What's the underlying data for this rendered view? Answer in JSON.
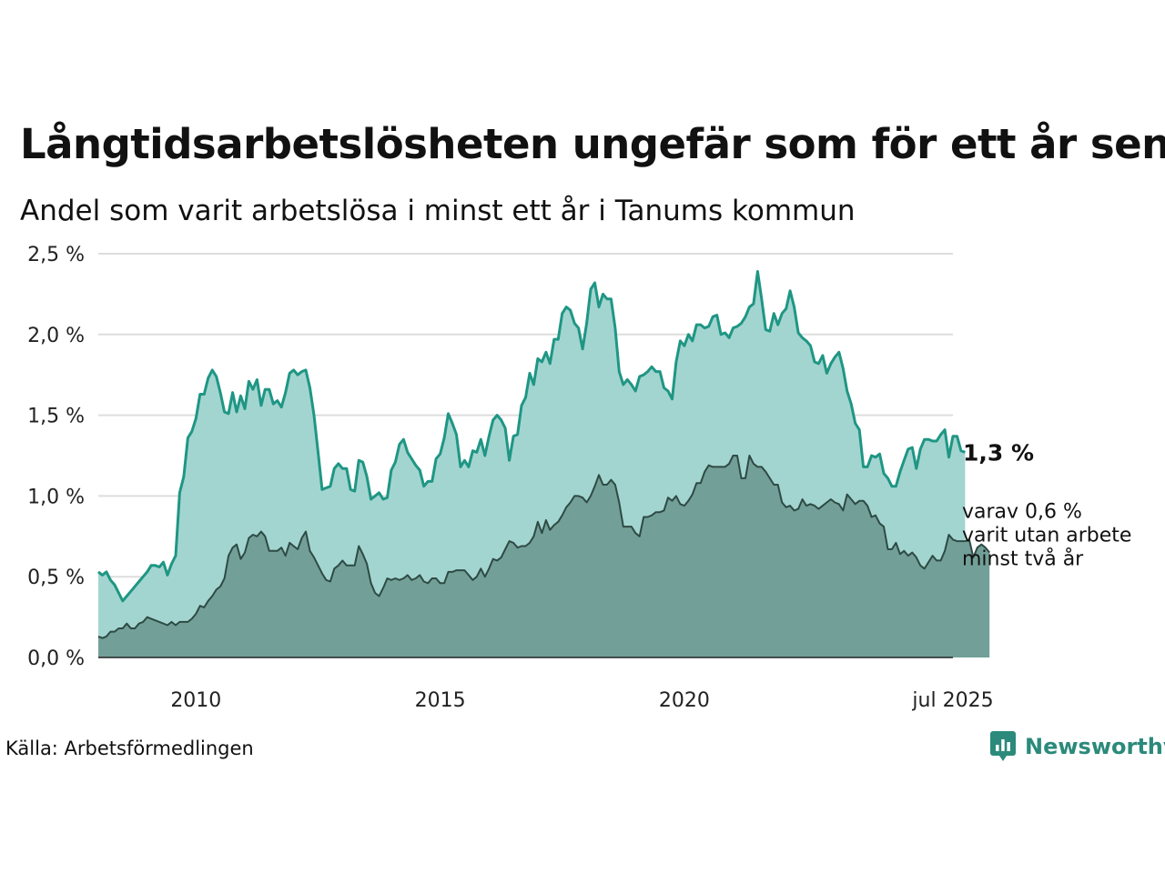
{
  "title": "Långtidsarbetslösheten ungefär som för ett år sen",
  "subtitle": "Andel som varit arbetslösa i minst ett år i Tanums kommun",
  "source": "Källa: Arbetsförmedlingen",
  "brand": "Newsworthy",
  "colors": {
    "total_line": "#1f9684",
    "total_fill": "#a3d5d0",
    "long_line": "#2e4a44",
    "long_fill": "#72a098",
    "grid": "#dddddd",
    "brand": "#2b8a7b"
  },
  "end_label": "1,3 %",
  "note_lines": [
    "varav 0,6 %",
    "varit utan arbete",
    "minst två år"
  ],
  "chart_data": {
    "type": "area",
    "x_start": "2008-01",
    "x_end": "2025-07",
    "frequency": "monthly",
    "ylim": [
      0,
      2.5
    ],
    "y_ticks": [
      0,
      0.5,
      1.0,
      1.5,
      2.0,
      2.5
    ],
    "y_tick_labels": [
      "0,0 %",
      "0,5 %",
      "1,0 %",
      "1,5 %",
      "2,0 %",
      "2,5 %"
    ],
    "x_ticks": [
      "2010-01",
      "2015-01",
      "2020-01",
      "2025-07"
    ],
    "x_tick_labels": [
      "2010",
      "2015",
      "2020",
      "jul 2025"
    ],
    "grid": "horizontal",
    "series": [
      {
        "key": "total",
        "values": [
          0.53,
          0.51,
          0.53,
          0.48,
          0.45,
          0.4,
          0.35,
          0.38,
          0.41,
          0.44,
          0.47,
          0.5,
          0.53,
          0.57,
          0.57,
          0.56,
          0.59,
          0.51,
          0.58,
          0.63,
          1.02,
          1.12,
          1.36,
          1.4,
          1.48,
          1.63,
          1.63,
          1.73,
          1.78,
          1.74,
          1.64,
          1.52,
          1.51,
          1.64,
          1.52,
          1.62,
          1.54,
          1.71,
          1.66,
          1.72,
          1.56,
          1.66,
          1.66,
          1.57,
          1.59,
          1.55,
          1.64,
          1.76,
          1.78,
          1.75,
          1.77,
          1.78,
          1.67,
          1.5,
          1.27,
          1.04,
          1.05,
          1.06,
          1.17,
          1.2,
          1.17,
          1.17,
          1.04,
          1.03,
          1.22,
          1.21,
          1.12,
          0.98,
          1.0,
          1.02,
          0.98,
          0.99,
          1.16,
          1.21,
          1.32,
          1.35,
          1.27,
          1.23,
          1.19,
          1.16,
          1.06,
          1.09,
          1.09,
          1.23,
          1.26,
          1.36,
          1.51,
          1.45,
          1.38,
          1.18,
          1.22,
          1.18,
          1.28,
          1.27,
          1.35,
          1.25,
          1.37,
          1.47,
          1.5,
          1.47,
          1.42,
          1.22,
          1.37,
          1.38,
          1.56,
          1.61,
          1.76,
          1.69,
          1.85,
          1.83,
          1.89,
          1.82,
          1.97,
          1.97,
          2.13,
          2.17,
          2.15,
          2.07,
          2.04,
          1.91,
          2.07,
          2.28,
          2.32,
          2.17,
          2.25,
          2.22,
          2.22,
          2.04,
          1.77,
          1.69,
          1.72,
          1.69,
          1.65,
          1.74,
          1.75,
          1.77,
          1.8,
          1.77,
          1.77,
          1.67,
          1.65,
          1.6,
          1.83,
          1.96,
          1.93,
          2.0,
          1.96,
          2.06,
          2.06,
          2.04,
          2.05,
          2.11,
          2.12,
          2.0,
          2.01,
          1.98,
          2.04,
          2.05,
          2.07,
          2.11,
          2.17,
          2.19,
          2.39,
          2.22,
          2.03,
          2.02,
          2.13,
          2.06,
          2.13,
          2.16,
          2.27,
          2.17,
          2.01,
          1.98,
          1.96,
          1.93,
          1.83,
          1.82,
          1.87,
          1.76,
          1.82,
          1.86,
          1.89,
          1.79,
          1.65,
          1.57,
          1.45,
          1.41,
          1.18,
          1.18,
          1.25,
          1.24,
          1.26,
          1.14,
          1.11,
          1.06,
          1.06,
          1.15,
          1.22,
          1.29,
          1.3,
          1.17,
          1.29,
          1.35,
          1.35,
          1.34,
          1.34,
          1.38,
          1.41,
          1.24,
          1.37,
          1.37,
          1.28,
          1.27
        ]
      },
      {
        "key": "long",
        "values": [
          0.13,
          0.12,
          0.13,
          0.16,
          0.16,
          0.18,
          0.18,
          0.21,
          0.18,
          0.18,
          0.21,
          0.22,
          0.25,
          0.24,
          0.23,
          0.22,
          0.21,
          0.2,
          0.22,
          0.2,
          0.22,
          0.22,
          0.22,
          0.24,
          0.27,
          0.32,
          0.31,
          0.35,
          0.38,
          0.42,
          0.44,
          0.49,
          0.63,
          0.68,
          0.7,
          0.61,
          0.65,
          0.74,
          0.76,
          0.75,
          0.78,
          0.75,
          0.66,
          0.66,
          0.66,
          0.68,
          0.63,
          0.71,
          0.69,
          0.67,
          0.74,
          0.78,
          0.66,
          0.62,
          0.57,
          0.52,
          0.48,
          0.47,
          0.55,
          0.57,
          0.6,
          0.57,
          0.57,
          0.57,
          0.69,
          0.64,
          0.58,
          0.46,
          0.4,
          0.38,
          0.43,
          0.49,
          0.48,
          0.49,
          0.48,
          0.49,
          0.51,
          0.48,
          0.49,
          0.51,
          0.47,
          0.46,
          0.49,
          0.49,
          0.46,
          0.46,
          0.53,
          0.53,
          0.54,
          0.54,
          0.54,
          0.51,
          0.48,
          0.5,
          0.55,
          0.5,
          0.55,
          0.61,
          0.6,
          0.62,
          0.67,
          0.72,
          0.71,
          0.68,
          0.69,
          0.69,
          0.71,
          0.75,
          0.84,
          0.77,
          0.85,
          0.79,
          0.82,
          0.84,
          0.88,
          0.93,
          0.96,
          1.0,
          1.0,
          0.99,
          0.96,
          1.0,
          1.06,
          1.13,
          1.07,
          1.07,
          1.1,
          1.07,
          0.96,
          0.81,
          0.81,
          0.81,
          0.77,
          0.75,
          0.87,
          0.87,
          0.88,
          0.9,
          0.9,
          0.91,
          0.99,
          0.97,
          1.0,
          0.95,
          0.94,
          0.97,
          1.01,
          1.08,
          1.08,
          1.15,
          1.19,
          1.18,
          1.18,
          1.18,
          1.18,
          1.2,
          1.25,
          1.25,
          1.11,
          1.11,
          1.25,
          1.2,
          1.18,
          1.18,
          1.15,
          1.11,
          1.07,
          1.07,
          0.96,
          0.93,
          0.94,
          0.91,
          0.92,
          0.98,
          0.94,
          0.95,
          0.94,
          0.92,
          0.94,
          0.96,
          0.98,
          0.96,
          0.95,
          0.91,
          1.01,
          0.98,
          0.95,
          0.97,
          0.97,
          0.94,
          0.87,
          0.88,
          0.83,
          0.81,
          0.67,
          0.67,
          0.71,
          0.64,
          0.66,
          0.63,
          0.65,
          0.62,
          0.57,
          0.55,
          0.59,
          0.63,
          0.6,
          0.6,
          0.66,
          0.76,
          0.73,
          0.72,
          0.72,
          0.72,
          0.73,
          0.62,
          0.68,
          0.7,
          0.68,
          0.65
        ]
      }
    ]
  }
}
